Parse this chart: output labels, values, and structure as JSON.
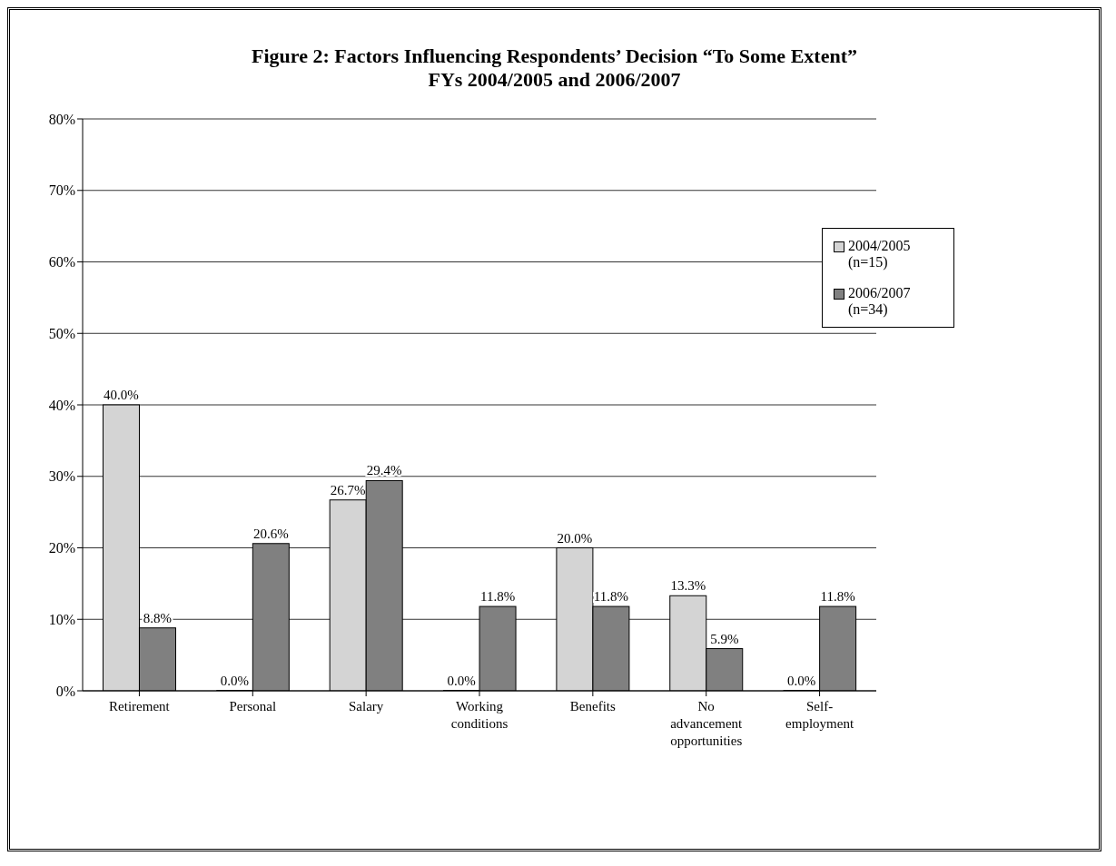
{
  "chart_data": {
    "type": "bar",
    "title": "Figure 2: Factors Influencing Respondents’ Decision “To Some Extent”\nFYs 2004/2005 and 2006/2007",
    "categories": [
      "Retirement",
      "Personal",
      "Salary",
      "Working conditions",
      "Benefits",
      "No advancement opportunities",
      "Self-employment"
    ],
    "series": [
      {
        "name": "2004/2005 (n=15)",
        "color": "#d4d4d4",
        "values": [
          40.0,
          0.0,
          26.7,
          0.0,
          20.0,
          13.3,
          0.0
        ],
        "value_labels": [
          "40.0%",
          "0.0%",
          "26.7%",
          "0.0%",
          "20.0%",
          "13.3%",
          "0.0%"
        ]
      },
      {
        "name": "2006/2007 (n=34)",
        "color": "#808080",
        "values": [
          8.8,
          20.6,
          29.4,
          11.8,
          11.8,
          5.9,
          11.8
        ],
        "value_labels": [
          "8.8%",
          "20.6%",
          "29.4%",
          "11.8%",
          "11.8%",
          "5.9%",
          "11.8%"
        ]
      }
    ],
    "ylim": [
      0,
      80
    ],
    "yticks": [
      {
        "value": 0,
        "label": "0%"
      },
      {
        "value": 10,
        "label": "10%"
      },
      {
        "value": 20,
        "label": "20%"
      },
      {
        "value": 30,
        "label": "30%"
      },
      {
        "value": 40,
        "label": "40%"
      },
      {
        "value": 50,
        "label": "50%"
      },
      {
        "value": 60,
        "label": "60%"
      },
      {
        "value": 70,
        "label": "70%"
      },
      {
        "value": 80,
        "label": "80%"
      }
    ],
    "grid": "y",
    "legend": "top right"
  }
}
